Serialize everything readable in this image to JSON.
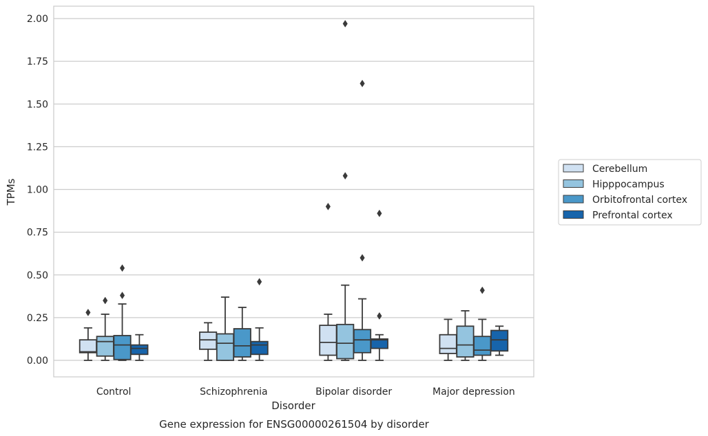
{
  "chart_data": {
    "type": "boxplot",
    "title": "",
    "caption": "Gene expression for ENSG00000261504 by disorder",
    "xlabel": "Disorder",
    "ylabel": "TPMs",
    "ylim": [
      -0.1,
      2.07
    ],
    "yticks": [
      0.0,
      0.25,
      0.5,
      0.75,
      1.0,
      1.25,
      1.5,
      1.75,
      2.0
    ],
    "ytick_labels": [
      "0.00",
      "0.25",
      "0.50",
      "0.75",
      "1.00",
      "1.25",
      "1.50",
      "1.75",
      "2.00"
    ],
    "grid": "horizontal",
    "legend_position": "right",
    "categories": [
      "Control",
      "Schizophrenia",
      "Bipolar disorder",
      "Major depression"
    ],
    "series": [
      {
        "name": "Cerebellum",
        "color": "#d0e1f2",
        "boxes": [
          {
            "whislo": 0.0,
            "q1": 0.045,
            "med": 0.05,
            "q3": 0.12,
            "whishi": 0.19,
            "fliers": [
              0.28
            ]
          },
          {
            "whislo": 0.0,
            "q1": 0.065,
            "med": 0.12,
            "q3": 0.165,
            "whishi": 0.22,
            "fliers": []
          },
          {
            "whislo": 0.0,
            "q1": 0.03,
            "med": 0.105,
            "q3": 0.205,
            "whishi": 0.27,
            "fliers": [
              0.9
            ]
          },
          {
            "whislo": 0.0,
            "q1": 0.04,
            "med": 0.07,
            "q3": 0.15,
            "whishi": 0.24,
            "fliers": []
          }
        ]
      },
      {
        "name": "Hipppocampus",
        "color": "#94c4df",
        "boxes": [
          {
            "whislo": 0.0,
            "q1": 0.025,
            "med": 0.11,
            "q3": 0.14,
            "whishi": 0.27,
            "fliers": [
              0.35
            ]
          },
          {
            "whislo": 0.0,
            "q1": 0.0,
            "med": 0.1,
            "q3": 0.155,
            "whishi": 0.37,
            "fliers": []
          },
          {
            "whislo": 0.0,
            "q1": 0.01,
            "med": 0.1,
            "q3": 0.21,
            "whishi": 0.44,
            "fliers": [
              1.97,
              1.08
            ]
          },
          {
            "whislo": 0.0,
            "q1": 0.02,
            "med": 0.09,
            "q3": 0.2,
            "whishi": 0.29,
            "fliers": []
          }
        ]
      },
      {
        "name": "Orbitofrontal cortex",
        "color": "#4a98c9",
        "boxes": [
          {
            "whislo": 0.0,
            "q1": 0.005,
            "med": 0.09,
            "q3": 0.145,
            "whishi": 0.33,
            "fliers": [
              0.38,
              0.54
            ]
          },
          {
            "whislo": 0.0,
            "q1": 0.02,
            "med": 0.085,
            "q3": 0.185,
            "whishi": 0.31,
            "fliers": []
          },
          {
            "whislo": 0.0,
            "q1": 0.045,
            "med": 0.12,
            "q3": 0.18,
            "whishi": 0.36,
            "fliers": [
              1.62,
              0.6
            ]
          },
          {
            "whislo": 0.0,
            "q1": 0.03,
            "med": 0.06,
            "q3": 0.14,
            "whishi": 0.24,
            "fliers": [
              0.41
            ]
          }
        ]
      },
      {
        "name": "Prefrontal cortex",
        "color": "#1764ab",
        "boxes": [
          {
            "whislo": 0.0,
            "q1": 0.035,
            "med": 0.07,
            "q3": 0.09,
            "whishi": 0.15,
            "fliers": []
          },
          {
            "whislo": 0.0,
            "q1": 0.035,
            "med": 0.09,
            "q3": 0.11,
            "whishi": 0.19,
            "fliers": [
              0.46
            ]
          },
          {
            "whislo": 0.0,
            "q1": 0.07,
            "med": 0.12,
            "q3": 0.125,
            "whishi": 0.15,
            "fliers": [
              0.86,
              0.26
            ]
          },
          {
            "whislo": 0.03,
            "q1": 0.055,
            "med": 0.12,
            "q3": 0.175,
            "whishi": 0.2,
            "fliers": []
          }
        ]
      }
    ]
  }
}
